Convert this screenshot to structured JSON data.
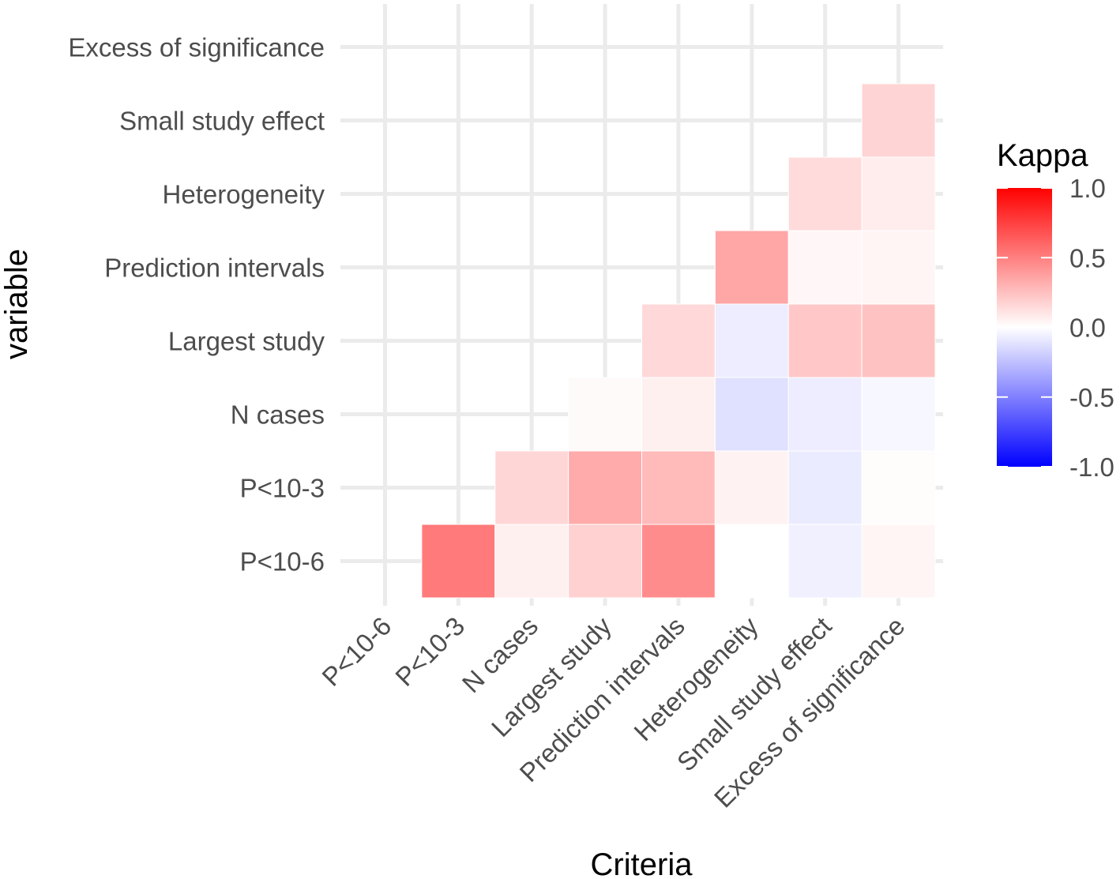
{
  "chart_data": {
    "type": "heatmap",
    "title": "",
    "xlabel": "Criteria",
    "ylabel": "variable",
    "x_categories": [
      "P<10-6",
      "P<10-3",
      "N cases",
      "Largest study",
      "Prediction intervals",
      "Heterogeneity",
      "Small study effect",
      "Excess of significance"
    ],
    "y_categories": [
      "P<10-6",
      "P<10-3",
      "N cases",
      "Largest study",
      "Prediction intervals",
      "Heterogeneity",
      "Small study effect",
      "Excess of significance"
    ],
    "cells": [
      {
        "x": "P<10-3",
        "y": "P<10-6",
        "value": 0.52
      },
      {
        "x": "N cases",
        "y": "P<10-6",
        "value": 0.06
      },
      {
        "x": "Largest study",
        "y": "P<10-6",
        "value": 0.18
      },
      {
        "x": "Prediction intervals",
        "y": "P<10-6",
        "value": 0.45
      },
      {
        "x": "Heterogeneity",
        "y": "P<10-6",
        "value": 0.0
      },
      {
        "x": "Small study effect",
        "y": "P<10-6",
        "value": -0.06
      },
      {
        "x": "Excess of significance",
        "y": "P<10-6",
        "value": 0.04
      },
      {
        "x": "N cases",
        "y": "P<10-3",
        "value": 0.16
      },
      {
        "x": "Largest study",
        "y": "P<10-3",
        "value": 0.33
      },
      {
        "x": "Prediction intervals",
        "y": "P<10-3",
        "value": 0.27
      },
      {
        "x": "Heterogeneity",
        "y": "P<10-3",
        "value": 0.05
      },
      {
        "x": "Small study effect",
        "y": "P<10-3",
        "value": -0.08
      },
      {
        "x": "Excess of significance",
        "y": "P<10-3",
        "value": 0.01
      },
      {
        "x": "Largest study",
        "y": "N cases",
        "value": 0.02
      },
      {
        "x": "Prediction intervals",
        "y": "N cases",
        "value": 0.06
      },
      {
        "x": "Heterogeneity",
        "y": "N cases",
        "value": -0.12
      },
      {
        "x": "Small study effect",
        "y": "N cases",
        "value": -0.07
      },
      {
        "x": "Excess of significance",
        "y": "N cases",
        "value": -0.03
      },
      {
        "x": "Prediction intervals",
        "y": "Largest study",
        "value": 0.15
      },
      {
        "x": "Heterogeneity",
        "y": "Largest study",
        "value": -0.07
      },
      {
        "x": "Small study effect",
        "y": "Largest study",
        "value": 0.22
      },
      {
        "x": "Excess of significance",
        "y": "Largest study",
        "value": 0.24
      },
      {
        "x": "Heterogeneity",
        "y": "Prediction intervals",
        "value": 0.35
      },
      {
        "x": "Small study effect",
        "y": "Prediction intervals",
        "value": 0.03
      },
      {
        "x": "Excess of significance",
        "y": "Prediction intervals",
        "value": 0.04
      },
      {
        "x": "Small study effect",
        "y": "Heterogeneity",
        "value": 0.14
      },
      {
        "x": "Excess of significance",
        "y": "Heterogeneity",
        "value": 0.07
      },
      {
        "x": "Excess of significance",
        "y": "Small study effect",
        "value": 0.17
      }
    ],
    "legend": {
      "title": "Kappa",
      "position": "right",
      "limits": [
        -1.0,
        1.0
      ],
      "ticks": [
        "1.0",
        "0.5",
        "0.0",
        "-0.5",
        "-1.0"
      ],
      "colors": {
        "low": "#0000ff",
        "mid": "#ffffff",
        "high": "#ff0000"
      }
    },
    "grid": true
  }
}
